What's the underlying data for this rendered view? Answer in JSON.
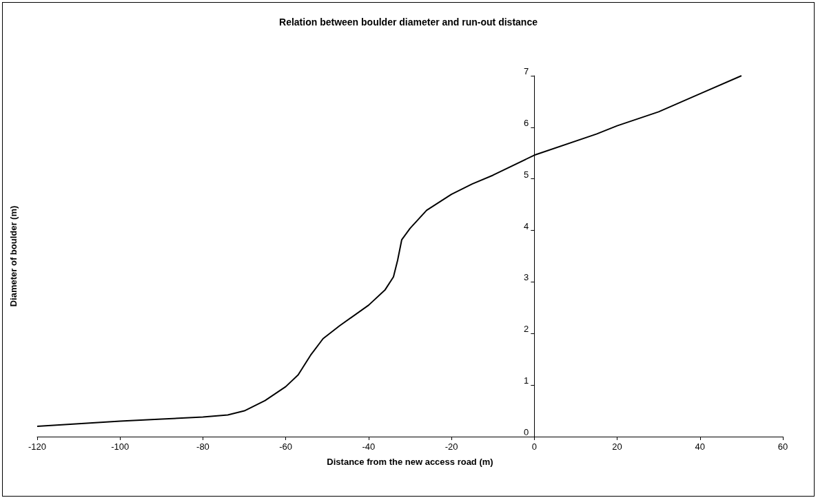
{
  "chart_data": {
    "type": "line",
    "title": "Relation between boulder diameter and run-out distance",
    "xlabel": "Distance from the new access road (m)",
    "ylabel": "Diameter of boulder (m)",
    "x": [
      -120,
      -110,
      -100,
      -90,
      -80,
      -74,
      -70,
      -65,
      -60,
      -57,
      -54,
      -51,
      -47,
      -40,
      -36,
      -34,
      -33,
      -32,
      -30,
      -26,
      -20,
      -15,
      -10,
      0,
      15,
      20,
      30,
      40,
      50
    ],
    "series": [
      {
        "color": "#000000",
        "values": [
          0.2,
          0.25,
          0.3,
          0.34,
          0.38,
          0.42,
          0.5,
          0.7,
          0.97,
          1.2,
          1.58,
          1.9,
          2.15,
          2.55,
          2.85,
          3.1,
          3.42,
          3.82,
          4.04,
          4.39,
          4.7,
          4.9,
          5.07,
          5.46,
          5.87,
          6.03,
          6.3,
          6.65,
          7.0
        ]
      }
    ],
    "xlim": [
      -120,
      60
    ],
    "xticks": [
      -120,
      -100,
      -80,
      -60,
      -40,
      -20,
      0,
      20,
      40,
      60
    ],
    "ylim": [
      0,
      7
    ],
    "yticks": [
      0,
      1,
      2,
      3,
      4,
      5,
      6,
      7
    ],
    "marker": "none",
    "line_style": "solid"
  }
}
